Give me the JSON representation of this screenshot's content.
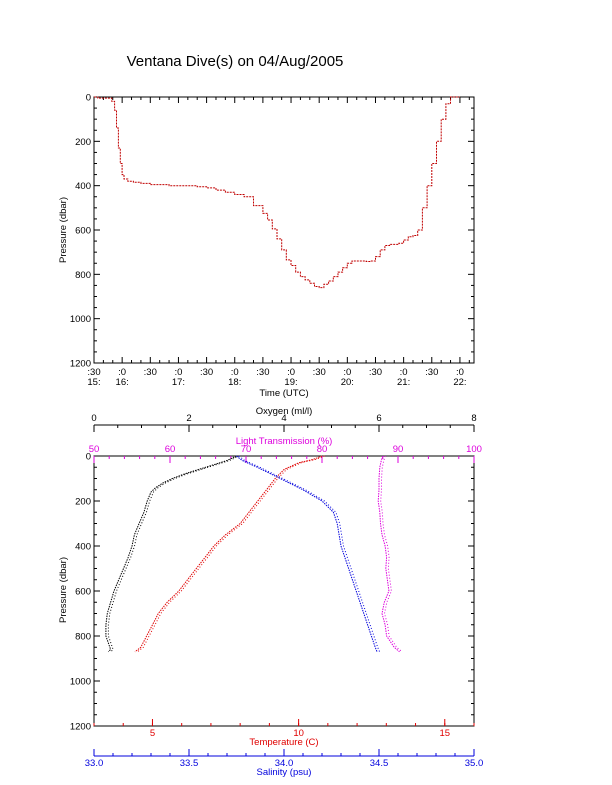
{
  "title": "Ventana Dive(s) on 04/Aug/2005",
  "colors": {
    "axis": "#000000",
    "depth_trace": "#c00000",
    "oxygen": "#000000",
    "light": "#dd00dd",
    "temperature": "#e00000",
    "salinity": "#0000dd"
  },
  "chart_data": [
    {
      "type": "line",
      "title": "Ventana Dive(s) on 04/Aug/2005",
      "xlabel": "Time (UTC)",
      "ylabel": "Pressure (dbar)",
      "xlim": [
        "15:30",
        "22:15"
      ],
      "ylim": [
        1200,
        0
      ],
      "y_inverted": true,
      "grid": false,
      "x_tick_labels": [
        [
          ":30",
          "15:"
        ],
        [
          ":0",
          "16:"
        ],
        [
          ":30",
          ""
        ],
        [
          ":0",
          "17:"
        ],
        [
          ":30",
          ""
        ],
        [
          ":0",
          "18:"
        ],
        [
          ":30",
          ""
        ],
        [
          ":0",
          "19:"
        ],
        [
          ":30",
          ""
        ],
        [
          ":0",
          "20:"
        ],
        [
          ":30",
          ""
        ],
        [
          ":0",
          "21:"
        ],
        [
          ":30",
          ""
        ],
        [
          ":0",
          "22:"
        ]
      ],
      "y_ticks": [
        0,
        200,
        400,
        600,
        800,
        1000,
        1200
      ],
      "series": [
        {
          "style": "stepped line",
          "x": [
            "15:30",
            "15:34",
            "15:45",
            "15:49",
            "15:52",
            "15:54",
            "15:56",
            "15:58",
            "16:00",
            "16:02",
            "16:06",
            "16:12",
            "16:20",
            "16:30",
            "16:40",
            "16:50",
            "17:00",
            "17:10",
            "17:20",
            "17:30",
            "17:40",
            "17:50",
            "18:00",
            "18:10",
            "18:20",
            "18:30",
            "18:35",
            "18:40",
            "18:45",
            "18:50",
            "18:55",
            "19:00",
            "19:05",
            "19:10",
            "19:15",
            "19:20",
            "19:25",
            "19:30",
            "19:35",
            "19:40",
            "19:45",
            "19:50",
            "19:55",
            "20:00",
            "20:05",
            "20:10",
            "20:15",
            "20:20",
            "20:25",
            "20:30",
            "20:35",
            "20:40",
            "20:45",
            "20:50",
            "20:55",
            "21:00",
            "21:05",
            "21:10",
            "21:15",
            "21:20",
            "21:25",
            "21:30",
            "21:35",
            "21:40",
            "21:45",
            "21:50",
            "21:55",
            "22:00"
          ],
          "y": [
            0,
            5,
            5,
            20,
            60,
            140,
            230,
            300,
            350,
            370,
            380,
            385,
            390,
            395,
            395,
            400,
            400,
            400,
            405,
            410,
            420,
            430,
            440,
            450,
            490,
            525,
            555,
            595,
            640,
            690,
            735,
            760,
            790,
            810,
            825,
            840,
            855,
            860,
            845,
            830,
            810,
            790,
            770,
            750,
            740,
            740,
            740,
            742,
            740,
            720,
            690,
            670,
            665,
            665,
            660,
            645,
            630,
            625,
            600,
            500,
            400,
            300,
            200,
            100,
            30,
            0,
            0,
            0
          ]
        }
      ]
    },
    {
      "type": "scatter",
      "ylabel": "Pressure (dbar)",
      "ylim": [
        1200,
        0
      ],
      "y_inverted": true,
      "y_ticks": [
        0,
        200,
        400,
        600,
        800,
        1000,
        1200
      ],
      "grid": false,
      "axes": {
        "oxygen": {
          "label": "Oxygen (ml/l)",
          "position": "top",
          "range": [
            0,
            8
          ],
          "ticks": [
            0,
            2,
            4,
            6,
            8
          ]
        },
        "light": {
          "label": "Light Transmission (%)",
          "position": "top",
          "range": [
            50,
            100
          ],
          "ticks": [
            50,
            60,
            70,
            80,
            90,
            100
          ]
        },
        "temperature": {
          "label": "Temperature (C)",
          "position": "bottom",
          "range": [
            3,
            16
          ],
          "ticks": [
            5,
            10,
            15
          ]
        },
        "salinity": {
          "label": "Salinity (psu)",
          "position": "bottom",
          "range": [
            33.0,
            35.0
          ],
          "ticks": [
            "33.0",
            "33.5",
            "34.0",
            "34.5",
            "35.0"
          ]
        }
      },
      "series": [
        {
          "axis": "oxygen",
          "y": [
            0,
            20,
            40,
            60,
            80,
            100,
            120,
            140,
            160,
            200,
            250,
            300,
            350,
            400,
            450,
            500,
            550,
            600,
            650,
            700,
            750,
            800,
            830,
            860,
            870
          ],
          "values": [
            3.0,
            2.8,
            2.5,
            2.2,
            1.9,
            1.65,
            1.45,
            1.3,
            1.2,
            1.12,
            1.05,
            0.95,
            0.85,
            0.8,
            0.72,
            0.62,
            0.52,
            0.42,
            0.35,
            0.28,
            0.25,
            0.25,
            0.3,
            0.35,
            0.3
          ]
        },
        {
          "axis": "light",
          "y": [
            0,
            20,
            50,
            100,
            150,
            200,
            250,
            300,
            350,
            400,
            450,
            500,
            550,
            600,
            650,
            700,
            750,
            800,
            850,
            870
          ],
          "values": [
            88,
            87.8,
            87.6,
            87.5,
            87.5,
            87.4,
            87.6,
            87.7,
            87.9,
            88.3,
            88.5,
            88.4,
            88.6,
            88.8,
            88.2,
            87.9,
            88.3,
            88.5,
            89.5,
            90.2
          ]
        },
        {
          "axis": "temperature",
          "y": [
            0,
            15,
            30,
            60,
            100,
            150,
            200,
            250,
            300,
            350,
            400,
            450,
            500,
            550,
            600,
            650,
            700,
            750,
            800,
            850,
            870
          ],
          "values": [
            10.8,
            10.5,
            10.0,
            9.5,
            9.2,
            8.9,
            8.6,
            8.3,
            8.0,
            7.5,
            7.1,
            6.8,
            6.5,
            6.2,
            5.9,
            5.5,
            5.2,
            5.0,
            4.8,
            4.6,
            4.4
          ]
        },
        {
          "axis": "salinity",
          "y": [
            0,
            20,
            50,
            100,
            150,
            200,
            250,
            300,
            350,
            400,
            450,
            500,
            550,
            600,
            650,
            700,
            750,
            800,
            850,
            870
          ],
          "values": [
            33.75,
            33.78,
            33.86,
            33.98,
            34.1,
            34.2,
            34.26,
            34.28,
            34.29,
            34.3,
            34.32,
            34.34,
            34.36,
            34.38,
            34.4,
            34.42,
            34.44,
            34.46,
            34.48,
            34.49
          ]
        }
      ]
    }
  ]
}
